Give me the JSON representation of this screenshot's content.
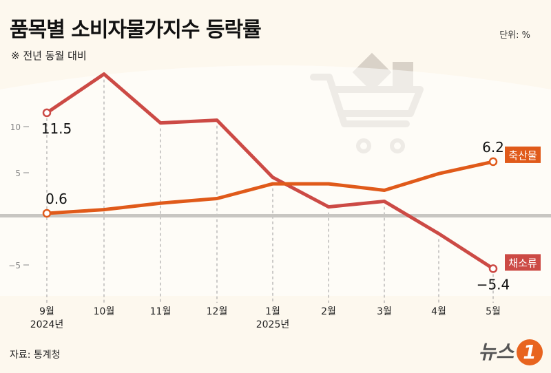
{
  "title": "품목별 소비자물가지수 등락률",
  "subtitle": "※ 전년 동월 대비",
  "unit": "단위: %",
  "source": "자료: 통계청",
  "logo": "뉴스1",
  "chart_data": {
    "type": "line",
    "title": "품목별 소비자물가지수 등락률",
    "categories": [
      "9월",
      "10월",
      "11월",
      "12월",
      "1월",
      "2월",
      "3월",
      "4월",
      "5월"
    ],
    "year_labels": {
      "0": "2024년",
      "4": "2025년"
    },
    "yticks": [
      10,
      5,
      -5
    ],
    "ylim": [
      -10,
      17
    ],
    "grid": "vertical dashed",
    "series": [
      {
        "name": "채소류",
        "color": "#cc4a45",
        "values": [
          11.5,
          15.7,
          10.4,
          10.7,
          4.5,
          1.3,
          1.9,
          -1.6,
          -5.4
        ],
        "labels": {
          "0": "11.5",
          "8": "-5.4"
        }
      },
      {
        "name": "축산물",
        "color": "#e05a1a",
        "values": [
          0.6,
          1.0,
          1.7,
          2.2,
          3.8,
          3.8,
          3.1,
          4.9,
          6.2
        ],
        "labels": {
          "0": "0.6",
          "8": "6.2"
        }
      }
    ]
  }
}
